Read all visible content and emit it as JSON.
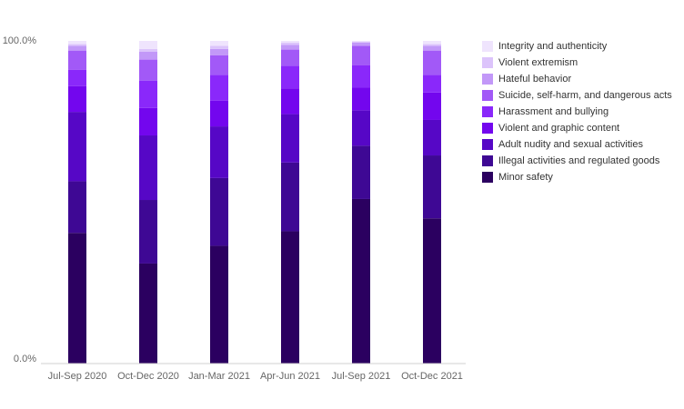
{
  "chart_data": {
    "type": "bar",
    "stacked": true,
    "normalized": true,
    "categories": [
      "Jul-Sep 2020",
      "Oct-Dec 2020",
      "Jan-Mar 2021",
      "Apr-Jun 2021",
      "Jul-Sep 2021",
      "Oct-Dec 2021"
    ],
    "ylim": [
      0,
      100
    ],
    "y_ticks": [
      "0.0%",
      "100.0%"
    ],
    "grid": false,
    "legend_position": "right",
    "series": [
      {
        "name": "Minor safety",
        "color": "#2b0060",
        "values": [
          40.5,
          31.0,
          36.5,
          41.0,
          51.0,
          45.0
        ]
      },
      {
        "name": "Illegal activities and regulated goods",
        "color": "#3e0894",
        "values": [
          16.0,
          19.7,
          21.0,
          21.3,
          16.5,
          19.5
        ]
      },
      {
        "name": "Adult nudity and sexual activities",
        "color": "#5607c6",
        "values": [
          21.5,
          20.0,
          16.0,
          15.0,
          11.0,
          11.0
        ]
      },
      {
        "name": "Violent and graphic content",
        "color": "#7306ee",
        "values": [
          8.0,
          8.5,
          8.0,
          8.0,
          7.0,
          8.5
        ]
      },
      {
        "name": "Harassment and bullying",
        "color": "#8a28fa",
        "values": [
          5.0,
          8.5,
          8.0,
          7.0,
          7.0,
          5.5
        ]
      },
      {
        "name": "Suicide, self-harm, and dangerous acts",
        "color": "#a259f7",
        "values": [
          6.0,
          6.5,
          6.0,
          5.0,
          6.0,
          7.5
        ]
      },
      {
        "name": "Hateful behavior",
        "color": "#c298f8",
        "values": [
          1.5,
          2.5,
          2.0,
          1.5,
          1.0,
          1.5
        ]
      },
      {
        "name": "Violent extremism",
        "color": "#dcc4fb",
        "values": [
          0.5,
          0.8,
          1.0,
          0.7,
          0.3,
          0.5
        ]
      },
      {
        "name": "Integrity and authenticity",
        "color": "#efe4fd",
        "values": [
          1.0,
          2.5,
          1.5,
          0.5,
          0.2,
          1.0
        ]
      }
    ]
  }
}
